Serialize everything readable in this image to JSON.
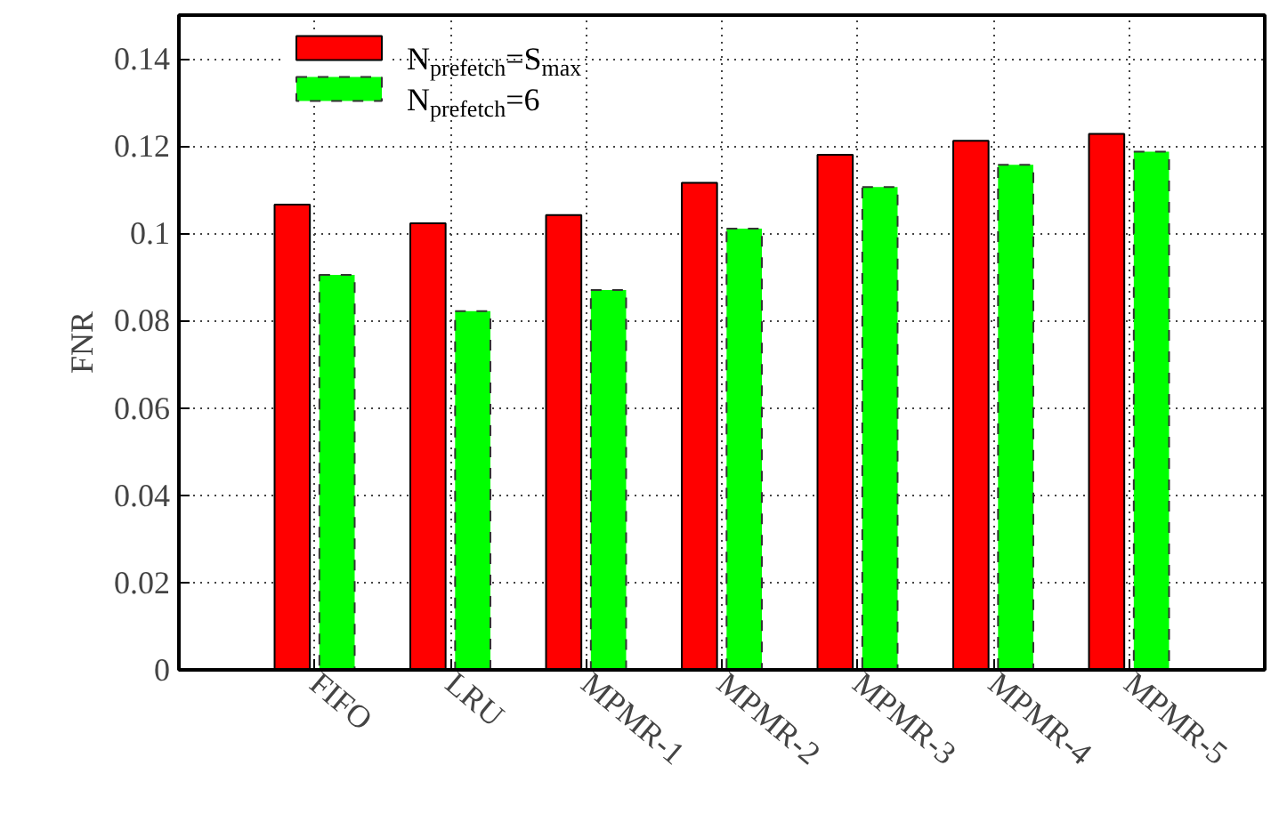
{
  "chart_data": {
    "type": "bar",
    "ylabel": "FNR",
    "categories": [
      "FIFO",
      "LRU",
      "MPMR-1",
      "MPMR-2",
      "MPMR-3",
      "MPMR-4",
      "MPMR-5"
    ],
    "series": [
      {
        "name": "N$_{prefetch}$=S$_{max}$",
        "color": "#ff0000",
        "values": [
          0.1066,
          0.1023,
          0.1042,
          0.1116,
          0.118,
          0.1212,
          0.1228
        ]
      },
      {
        "name": "N$_{prefetch}$=6",
        "color": "#00ff00",
        "line_style": "dashed",
        "values": [
          0.0905,
          0.0822,
          0.087,
          0.1011,
          0.1106,
          0.1157,
          0.1187
        ]
      }
    ],
    "ylim": [
      0,
      0.15
    ],
    "yticks": [
      0,
      0.02,
      0.04,
      0.06,
      0.08,
      0.1,
      0.12,
      0.14
    ],
    "grid": true,
    "legend": "top left"
  }
}
